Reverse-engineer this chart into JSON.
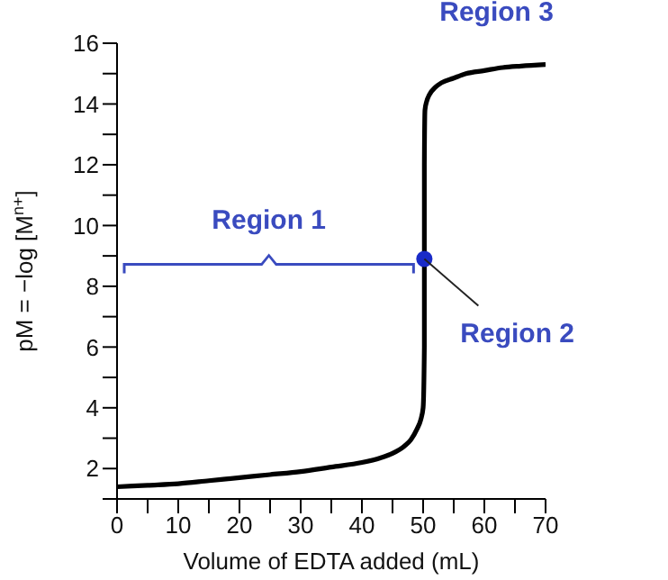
{
  "chart_data": {
    "type": "line",
    "xlabel": "Volume of EDTA added (mL)",
    "ylabel": "pM = −log [M$^{n+}$]",
    "xlim": [
      0,
      70
    ],
    "ylim": [
      1,
      16
    ],
    "xticks": [
      0,
      {
        "value": 5,
        "label": null
      },
      10,
      {
        "value": 15,
        "label": null
      },
      20,
      {
        "value": 25,
        "label": null
      },
      30,
      {
        "value": 35,
        "label": null
      },
      40,
      {
        "value": 45,
        "label": null
      },
      50,
      {
        "value": 55,
        "label": null
      },
      60,
      {
        "value": 65,
        "label": null
      },
      70
    ],
    "yticks": [
      {
        "value": 1,
        "label": null
      },
      2,
      {
        "value": 3,
        "label": null
      },
      4,
      {
        "value": 5,
        "label": null
      },
      6,
      {
        "value": 7,
        "label": null
      },
      8,
      {
        "value": 9,
        "label": null
      },
      10,
      {
        "value": 11,
        "label": null
      },
      12,
      {
        "value": 13,
        "label": null
      },
      14,
      {
        "value": 15,
        "label": null
      },
      16
    ],
    "marker": "none",
    "line_style": "solid",
    "series": [
      {
        "color": "#000000",
        "x": [
          0,
          5,
          10,
          15,
          20,
          25,
          30,
          35,
          40,
          43,
          45,
          47,
          48,
          49,
          49.6,
          50,
          50.2,
          50.2,
          50.2,
          50.3,
          50.6,
          51,
          52,
          53,
          55,
          57,
          60,
          63,
          66,
          70
        ],
        "values": [
          1.4,
          1.45,
          1.5,
          1.6,
          1.7,
          1.8,
          1.9,
          2.05,
          2.2,
          2.35,
          2.5,
          2.75,
          2.95,
          3.3,
          3.6,
          4.0,
          6,
          9,
          12,
          13.8,
          14.1,
          14.3,
          14.55,
          14.7,
          14.85,
          15.0,
          15.1,
          15.2,
          15.25,
          15.3
        ]
      },
      {
        "type": "scatter",
        "color": "#1a2bc8",
        "marker": "circle",
        "x": [
          50.2
        ],
        "values": [
          8.9
        ]
      }
    ],
    "annotations": [
      "Region 1",
      {
        "text": "Region 2",
        "x": 50.2,
        "y": 8.9
      },
      {
        "text": "Region 3",
        "x": 62,
        "y": 15.2
      }
    ]
  }
}
